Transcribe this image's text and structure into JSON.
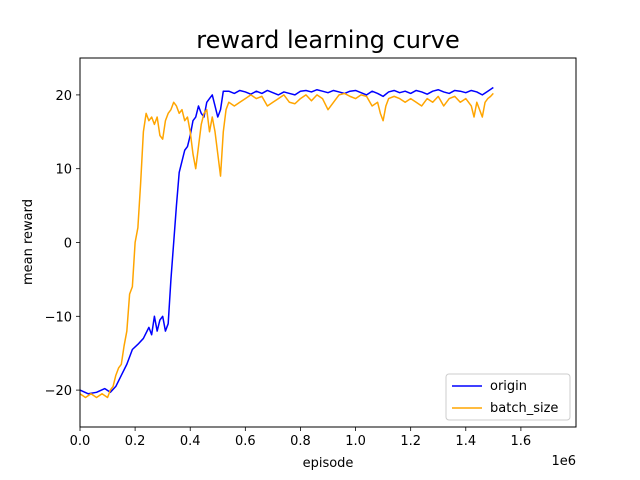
{
  "chart_data": {
    "type": "line",
    "title": "reward learning curve",
    "xlabel": "episode",
    "ylabel": "mean reward",
    "x_offset_label": "1e6",
    "xlim": [
      0,
      1800000
    ],
    "ylim": [
      -25,
      25
    ],
    "xticks": [
      0,
      200000,
      400000,
      600000,
      800000,
      1000000,
      1200000,
      1400000,
      1600000
    ],
    "xtick_labels": [
      "0.0",
      "0.2",
      "0.4",
      "0.6",
      "0.8",
      "1.0",
      "1.2",
      "1.4",
      "1.6"
    ],
    "yticks": [
      -20,
      -10,
      0,
      10,
      20
    ],
    "ytick_labels": [
      "−20",
      "−10",
      "0",
      "10",
      "20"
    ],
    "grid": false,
    "legend_position": "lower-right",
    "series": [
      {
        "name": "origin",
        "color": "#0000ff",
        "points": [
          [
            0,
            -20.0
          ],
          [
            30000,
            -20.5
          ],
          [
            60000,
            -20.3
          ],
          [
            90000,
            -19.8
          ],
          [
            110000,
            -20.3
          ],
          [
            130000,
            -19.5
          ],
          [
            150000,
            -18.0
          ],
          [
            170000,
            -16.5
          ],
          [
            190000,
            -14.5
          ],
          [
            210000,
            -13.8
          ],
          [
            230000,
            -13.0
          ],
          [
            250000,
            -11.5
          ],
          [
            260000,
            -12.5
          ],
          [
            270000,
            -10.0
          ],
          [
            280000,
            -12.0
          ],
          [
            290000,
            -10.5
          ],
          [
            300000,
            -10.0
          ],
          [
            310000,
            -12.0
          ],
          [
            320000,
            -11.0
          ],
          [
            330000,
            -5.0
          ],
          [
            340000,
            0.0
          ],
          [
            350000,
            5.0
          ],
          [
            360000,
            9.5
          ],
          [
            370000,
            11.0
          ],
          [
            380000,
            12.5
          ],
          [
            390000,
            13.0
          ],
          [
            400000,
            14.5
          ],
          [
            410000,
            16.5
          ],
          [
            420000,
            17.0
          ],
          [
            430000,
            18.5
          ],
          [
            440000,
            17.5
          ],
          [
            450000,
            17.0
          ],
          [
            460000,
            19.0
          ],
          [
            470000,
            19.5
          ],
          [
            480000,
            20.0
          ],
          [
            490000,
            18.5
          ],
          [
            500000,
            17.0
          ],
          [
            510000,
            18.0
          ],
          [
            520000,
            20.5
          ],
          [
            540000,
            20.5
          ],
          [
            560000,
            20.2
          ],
          [
            580000,
            20.6
          ],
          [
            600000,
            20.4
          ],
          [
            620000,
            20.1
          ],
          [
            640000,
            20.5
          ],
          [
            660000,
            20.2
          ],
          [
            680000,
            20.6
          ],
          [
            700000,
            20.3
          ],
          [
            720000,
            20.0
          ],
          [
            740000,
            20.4
          ],
          [
            760000,
            20.2
          ],
          [
            780000,
            20.0
          ],
          [
            800000,
            20.5
          ],
          [
            820000,
            20.6
          ],
          [
            840000,
            20.4
          ],
          [
            860000,
            20.7
          ],
          [
            880000,
            20.5
          ],
          [
            900000,
            20.3
          ],
          [
            920000,
            20.6
          ],
          [
            940000,
            20.4
          ],
          [
            960000,
            20.2
          ],
          [
            980000,
            20.5
          ],
          [
            1000000,
            20.6
          ],
          [
            1020000,
            20.3
          ],
          [
            1040000,
            20.0
          ],
          [
            1060000,
            20.5
          ],
          [
            1080000,
            20.2
          ],
          [
            1100000,
            19.8
          ],
          [
            1120000,
            20.4
          ],
          [
            1140000,
            20.6
          ],
          [
            1160000,
            20.3
          ],
          [
            1180000,
            20.5
          ],
          [
            1200000,
            20.2
          ],
          [
            1220000,
            20.6
          ],
          [
            1240000,
            20.4
          ],
          [
            1260000,
            20.1
          ],
          [
            1280000,
            20.5
          ],
          [
            1300000,
            20.7
          ],
          [
            1320000,
            20.4
          ],
          [
            1340000,
            20.2
          ],
          [
            1360000,
            20.6
          ],
          [
            1380000,
            20.5
          ],
          [
            1400000,
            20.3
          ],
          [
            1420000,
            20.6
          ],
          [
            1440000,
            20.4
          ],
          [
            1460000,
            20.0
          ],
          [
            1480000,
            20.5
          ],
          [
            1500000,
            21.0
          ]
        ]
      },
      {
        "name": "batch_size",
        "color": "#ffa500",
        "points": [
          [
            0,
            -20.5
          ],
          [
            20000,
            -21.0
          ],
          [
            40000,
            -20.5
          ],
          [
            60000,
            -21.0
          ],
          [
            80000,
            -20.5
          ],
          [
            100000,
            -21.0
          ],
          [
            110000,
            -20.0
          ],
          [
            120000,
            -19.5
          ],
          [
            130000,
            -18.0
          ],
          [
            140000,
            -17.0
          ],
          [
            150000,
            -16.5
          ],
          [
            160000,
            -14.0
          ],
          [
            170000,
            -12.0
          ],
          [
            180000,
            -7.0
          ],
          [
            190000,
            -6.0
          ],
          [
            200000,
            0.0
          ],
          [
            210000,
            2.0
          ],
          [
            220000,
            8.0
          ],
          [
            230000,
            15.0
          ],
          [
            240000,
            17.5
          ],
          [
            250000,
            16.5
          ],
          [
            260000,
            17.0
          ],
          [
            270000,
            16.0
          ],
          [
            280000,
            17.0
          ],
          [
            290000,
            14.5
          ],
          [
            300000,
            14.0
          ],
          [
            310000,
            16.5
          ],
          [
            320000,
            17.5
          ],
          [
            330000,
            18.0
          ],
          [
            340000,
            19.0
          ],
          [
            350000,
            18.5
          ],
          [
            360000,
            17.5
          ],
          [
            370000,
            18.0
          ],
          [
            380000,
            16.5
          ],
          [
            390000,
            17.0
          ],
          [
            400000,
            15.0
          ],
          [
            410000,
            12.0
          ],
          [
            420000,
            10.0
          ],
          [
            430000,
            13.0
          ],
          [
            440000,
            16.0
          ],
          [
            450000,
            17.5
          ],
          [
            460000,
            18.0
          ],
          [
            470000,
            15.0
          ],
          [
            480000,
            17.0
          ],
          [
            490000,
            15.0
          ],
          [
            500000,
            12.0
          ],
          [
            510000,
            9.0
          ],
          [
            520000,
            15.0
          ],
          [
            530000,
            18.0
          ],
          [
            540000,
            19.0
          ],
          [
            560000,
            18.5
          ],
          [
            580000,
            19.0
          ],
          [
            600000,
            19.5
          ],
          [
            620000,
            20.0
          ],
          [
            640000,
            19.5
          ],
          [
            660000,
            19.8
          ],
          [
            680000,
            18.5
          ],
          [
            700000,
            19.0
          ],
          [
            720000,
            19.5
          ],
          [
            740000,
            20.0
          ],
          [
            760000,
            19.0
          ],
          [
            780000,
            18.8
          ],
          [
            800000,
            19.5
          ],
          [
            820000,
            20.0
          ],
          [
            840000,
            19.2
          ],
          [
            860000,
            20.0
          ],
          [
            880000,
            19.5
          ],
          [
            900000,
            18.0
          ],
          [
            920000,
            19.0
          ],
          [
            940000,
            20.0
          ],
          [
            960000,
            20.2
          ],
          [
            980000,
            19.8
          ],
          [
            1000000,
            19.5
          ],
          [
            1020000,
            20.0
          ],
          [
            1040000,
            19.8
          ],
          [
            1060000,
            18.5
          ],
          [
            1080000,
            19.0
          ],
          [
            1090000,
            17.5
          ],
          [
            1100000,
            16.5
          ],
          [
            1110000,
            18.5
          ],
          [
            1120000,
            19.5
          ],
          [
            1140000,
            19.8
          ],
          [
            1160000,
            19.5
          ],
          [
            1180000,
            19.0
          ],
          [
            1200000,
            19.5
          ],
          [
            1220000,
            19.0
          ],
          [
            1240000,
            18.5
          ],
          [
            1260000,
            19.5
          ],
          [
            1280000,
            19.0
          ],
          [
            1300000,
            19.8
          ],
          [
            1320000,
            18.5
          ],
          [
            1340000,
            19.5
          ],
          [
            1360000,
            19.8
          ],
          [
            1380000,
            19.0
          ],
          [
            1400000,
            19.5
          ],
          [
            1420000,
            18.5
          ],
          [
            1430000,
            17.0
          ],
          [
            1440000,
            19.0
          ],
          [
            1460000,
            17.0
          ],
          [
            1470000,
            19.0
          ],
          [
            1480000,
            19.5
          ],
          [
            1490000,
            19.8
          ],
          [
            1500000,
            20.2
          ]
        ]
      }
    ]
  }
}
